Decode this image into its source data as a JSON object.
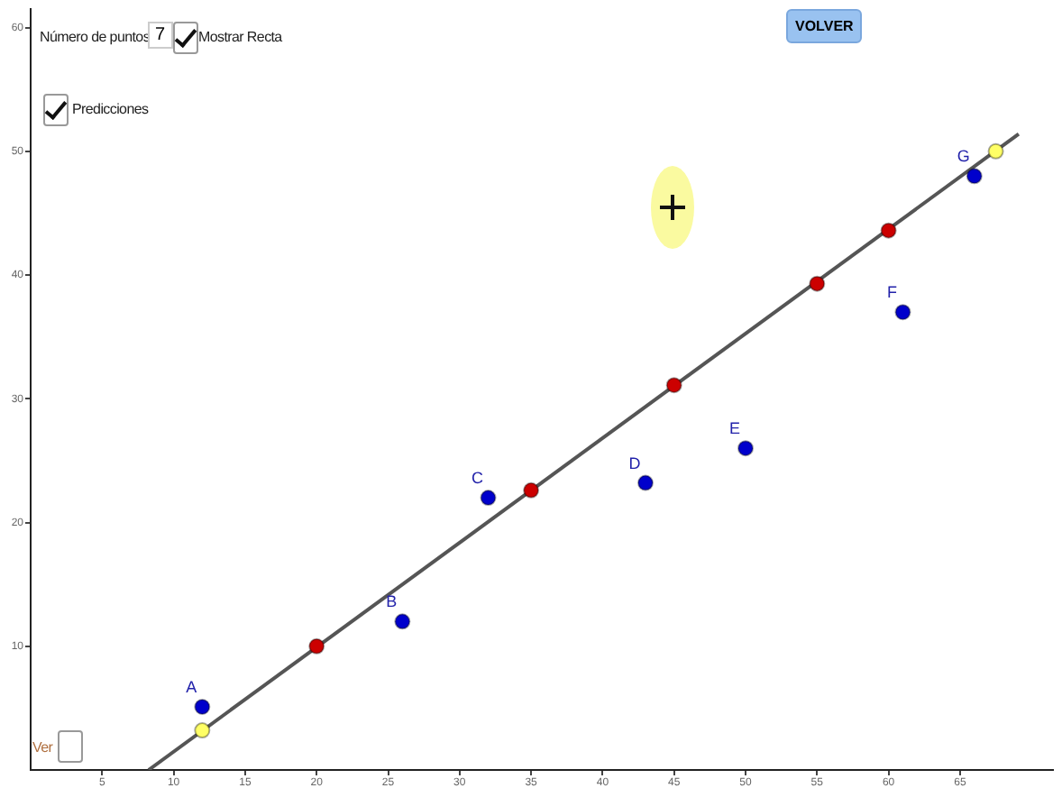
{
  "chart_data": {
    "type": "scatter",
    "xlim": [
      0,
      71.5
    ],
    "xticks": [
      5,
      10,
      15,
      20,
      25,
      30,
      35,
      40,
      45,
      50,
      55,
      60,
      65
    ],
    "ylim": [
      0,
      61.5
    ],
    "yticks": [
      10,
      20,
      30,
      40,
      50,
      60
    ],
    "grid": false,
    "legend": false,
    "marker": "circle",
    "series": [
      {
        "type": "scatter",
        "color": "#0000cc",
        "x": [
          12,
          26,
          32,
          43,
          50,
          61,
          66
        ],
        "values": [
          5.1,
          12.0,
          22.0,
          23.2,
          26.0,
          37.0,
          48.0
        ]
      },
      {
        "type": "line",
        "color": "#555555",
        "marker": "none",
        "x": [
          8.25,
          69.1
        ],
        "values": [
          0,
          51.4
        ]
      },
      {
        "type": "scatter",
        "color": "#cc0000",
        "x": [
          20,
          35,
          45,
          55,
          60
        ],
        "values": [
          10,
          22.6,
          31.1,
          39.3,
          43.6
        ]
      },
      {
        "type": "scatter",
        "color": "#ffff66",
        "x": [
          12,
          67.5
        ],
        "values": [
          3.2,
          50.0
        ]
      }
    ],
    "annotations": [
      "Número de puntos",
      "7",
      "Mostrar Recta",
      "Predicciones",
      "VOLVER",
      "Ver",
      {
        "text": "A",
        "x": 12,
        "y": 5.1
      },
      {
        "text": "B",
        "x": 26,
        "y": 12.0
      },
      {
        "text": "C",
        "x": 32,
        "y": 22.0
      },
      {
        "text": "D",
        "x": 43,
        "y": 23.2
      },
      {
        "text": "E",
        "x": 50,
        "y": 26.0
      },
      {
        "text": "F",
        "x": 61,
        "y": 37.0
      },
      {
        "text": "G",
        "x": 66,
        "y": 48.0
      }
    ]
  }
}
